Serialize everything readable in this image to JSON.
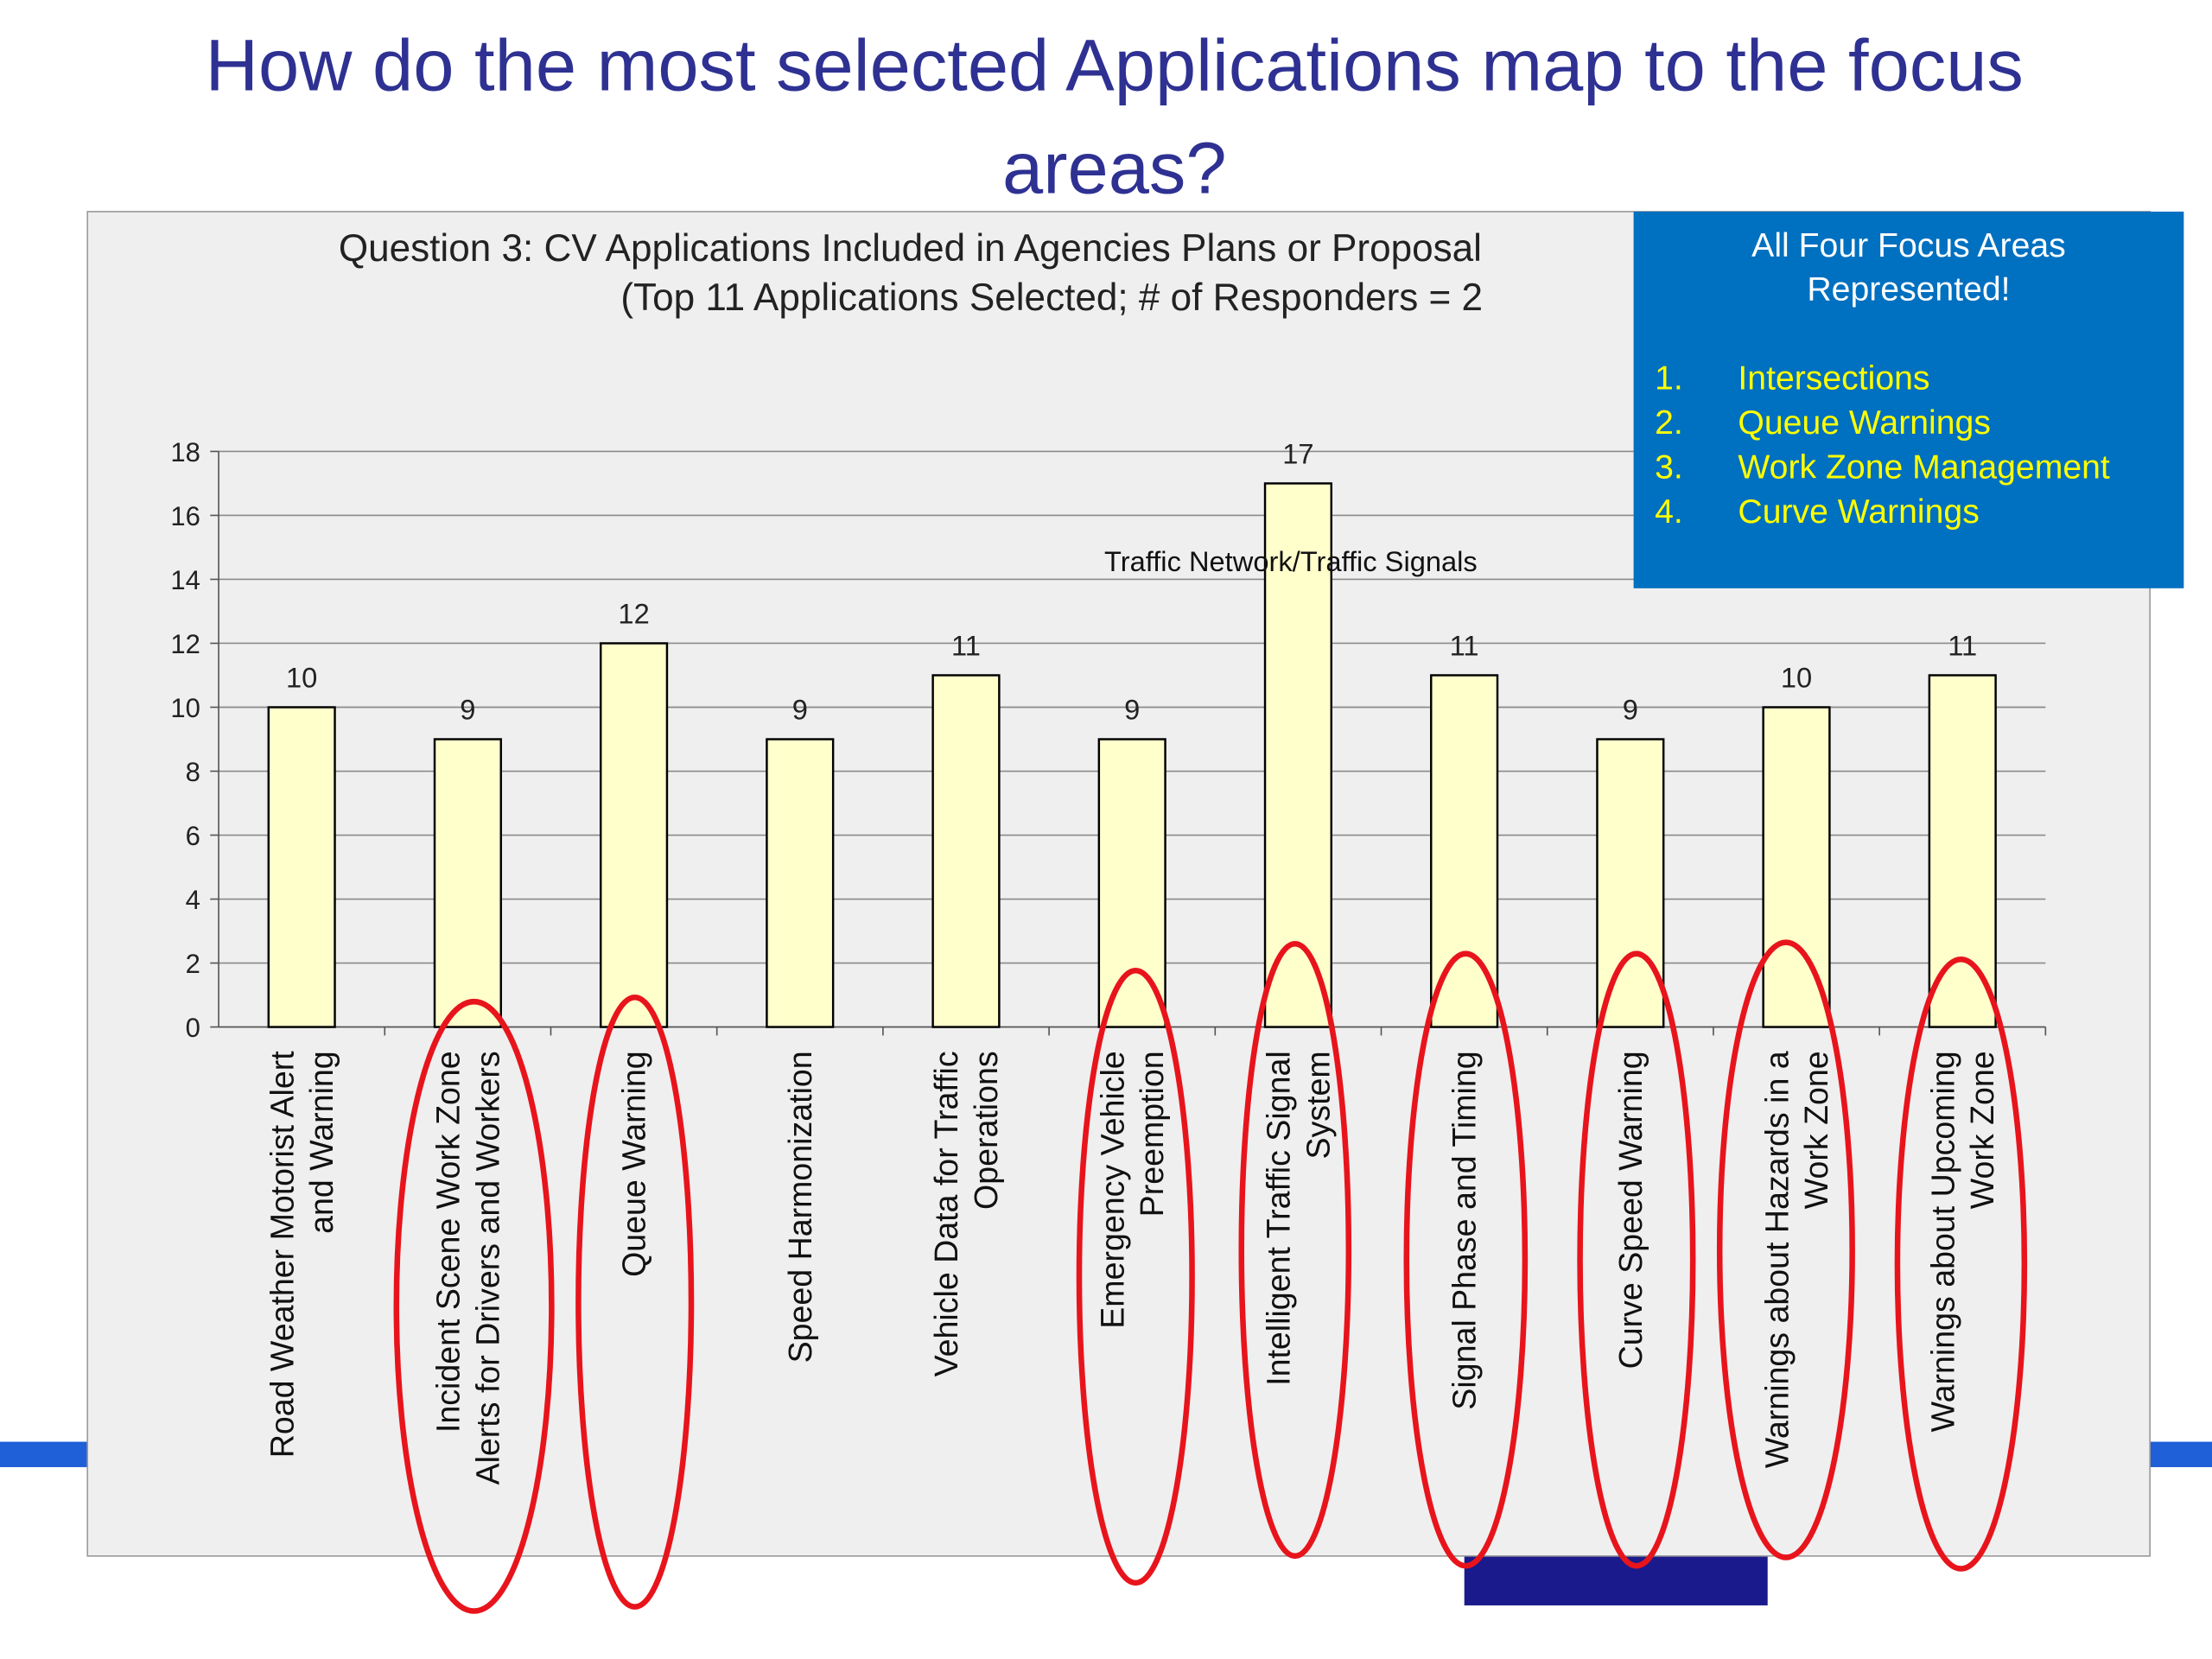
{
  "slide_title": [
    "How do the most selected Applications map to the focus",
    "areas?"
  ],
  "chart_data": {
    "type": "bar",
    "title": [
      "Question 3: CV Applications Included in Agencies Plans or Proposal",
      "(Top 11 Applications Selected;    # of Responders = 2"
    ],
    "annotation": "Traffic Network/Traffic Signals",
    "categories": [
      "Road Weather Motorist Alert\nand Warning",
      "Incident Scene Work Zone\nAlerts for Drivers and Workers",
      "Queue Warning",
      "Speed Harmonization",
      "Vehicle Data for Traffic\nOperations",
      "Emergency Vehicle\nPreemption",
      "Intelligent Traffic Signal\nSystem",
      "Signal Phase and Timing",
      "Curve Speed Warning",
      "Warnings about Hazards in a\nWork Zone",
      "Warnings about Upcoming\nWork Zone"
    ],
    "values": [
      10,
      9,
      12,
      9,
      11,
      9,
      17,
      11,
      9,
      10,
      11
    ],
    "color": "#ffffcc",
    "ylim": [
      0,
      18
    ],
    "yticks": [
      0,
      2,
      4,
      6,
      8,
      10,
      12,
      14,
      16,
      18
    ],
    "grid": true
  },
  "callout": {
    "title": [
      "All Four Focus Areas",
      "Represented!"
    ],
    "items": [
      {
        "number": "1.",
        "text": "Intersections"
      },
      {
        "number": "2.",
        "text": "Queue Warnings"
      },
      {
        "number": "3.",
        "text": "Work Zone Management"
      },
      {
        "number": "4.",
        "text": "Curve Warnings"
      }
    ]
  }
}
